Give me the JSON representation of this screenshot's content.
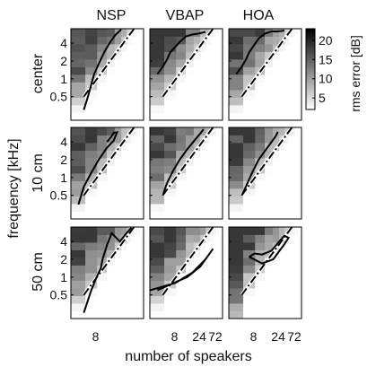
{
  "chart_data": {
    "type": "heatmap",
    "methods": [
      "NSP",
      "VBAP",
      "HOA"
    ],
    "positions": [
      "center",
      "10 cm",
      "50 cm"
    ],
    "xlabel": "number of speakers",
    "ylabel": "frequency [kHz]",
    "x_tick_labels": [
      "8",
      "24",
      "72"
    ],
    "y_tick_labels": [
      "4",
      "2",
      "1",
      "0.5"
    ],
    "y_ticks_khz": [
      4,
      2,
      1,
      0.5
    ],
    "x_range": [
      2,
      100
    ],
    "y_range_khz": [
      0.2,
      7
    ],
    "colorbar": {
      "label": "rms error [dB]",
      "ticks": [
        5,
        10,
        15,
        20
      ],
      "range": [
        2,
        23
      ],
      "low_color": "#ffffff",
      "high_color": "#000000"
    },
    "aliasing_line": {
      "style": "dash-dot",
      "points": [
        [
          4,
          0.5
        ],
        [
          60,
          7
        ]
      ]
    },
    "contours": [
      [
        [
          [
            4,
            0.3
          ],
          [
            5,
            0.5
          ],
          [
            6,
            0.8
          ],
          [
            7,
            1.2
          ],
          [
            9,
            1.8
          ],
          [
            12,
            2.8
          ],
          [
            16,
            4
          ],
          [
            22,
            5.5
          ],
          [
            30,
            6.8
          ]
        ],
        [
          [
            3,
            1.2
          ],
          [
            4,
            1.6
          ],
          [
            5,
            2.1
          ],
          [
            6,
            2.8
          ],
          [
            8,
            3.5
          ],
          [
            10,
            4.2
          ],
          [
            14,
            5.2
          ],
          [
            20,
            5.6
          ],
          [
            28,
            5.8
          ],
          [
            40,
            6.2
          ]
        ],
        [
          [
            3,
            1.2
          ],
          [
            4,
            1.6
          ],
          [
            5,
            2.1
          ],
          [
            6,
            2.8
          ],
          [
            8,
            3.8
          ],
          [
            10,
            4.8
          ],
          [
            14,
            5.8
          ],
          [
            20,
            6.3
          ],
          [
            28,
            6.3
          ],
          [
            40,
            6.5
          ]
        ]
      ],
      [
        [
          [
            14,
            4
          ],
          [
            18,
            5
          ],
          [
            20,
            5.7
          ],
          [
            24,
            5.8
          ],
          [
            20,
            4.2
          ],
          [
            14,
            3.2
          ],
          [
            9,
            2
          ],
          [
            6,
            1.2
          ],
          [
            4,
            0.7
          ],
          [
            3,
            0.35
          ]
        ],
        [
          [
            36,
            6.5
          ],
          [
            30,
            5.5
          ],
          [
            22,
            4.2
          ],
          [
            15,
            3
          ],
          [
            10,
            2
          ],
          [
            7,
            1.3
          ],
          [
            5,
            0.8
          ],
          [
            4,
            0.5
          ]
        ],
        [
          [
            28,
            5.9
          ],
          [
            25,
            5
          ],
          [
            20,
            4
          ],
          [
            15,
            3
          ],
          [
            10,
            2
          ],
          [
            7,
            1.2
          ],
          [
            5,
            0.7
          ],
          [
            4,
            0.5
          ]
        ]
      ],
      [
        [
          [
            4,
            0.25
          ],
          [
            6,
            0.6
          ],
          [
            8,
            1
          ],
          [
            10,
            1.4
          ],
          [
            11,
            2
          ],
          [
            14,
            3.5
          ],
          [
            18,
            5.5
          ],
          [
            28,
            4
          ],
          [
            40,
            5.5
          ],
          [
            52,
            6.8
          ]
        ],
        [
          [
            2,
            0.6
          ],
          [
            8,
            0.8
          ],
          [
            20,
            1.2
          ],
          [
            40,
            2
          ],
          [
            60,
            3
          ],
          [
            30,
            1.5
          ],
          [
            15,
            1
          ],
          [
            6,
            0.75
          ],
          [
            3,
            0.6
          ]
        ],
        [
          [
            6,
            2.2
          ],
          [
            12,
            1.7
          ],
          [
            22,
            2
          ],
          [
            40,
            3.6
          ],
          [
            50,
            4.6
          ],
          [
            40,
            5
          ],
          [
            30,
            4
          ],
          [
            20,
            2.8
          ],
          [
            12,
            2.4
          ],
          [
            8,
            2.5
          ],
          [
            6,
            2.2
          ]
        ]
      ]
    ]
  }
}
